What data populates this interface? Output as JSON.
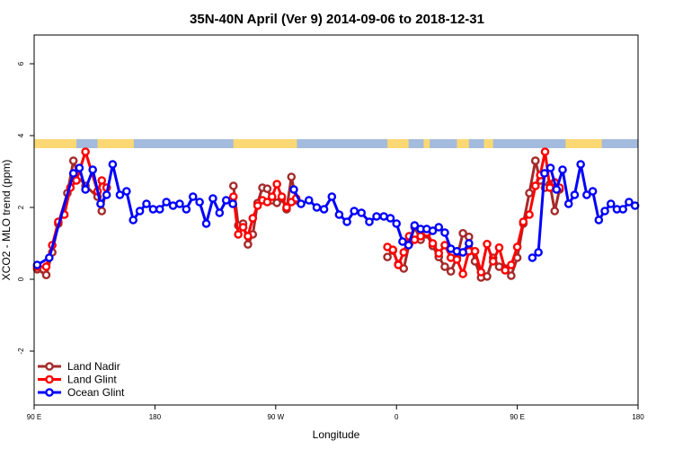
{
  "chart_data": {
    "type": "line",
    "title": "35N-40N April (Ver 9)   2014-09-06 to 2018-12-31",
    "xlabel": "Longitude",
    "ylabel": "XCO2 - MLO trend (ppm)",
    "xlim": [
      0,
      1
    ],
    "ylim": [
      -3.5,
      6.8
    ],
    "xticks": [
      {
        "pos": 0.0,
        "label": "90 E"
      },
      {
        "pos": 0.2,
        "label": "180"
      },
      {
        "pos": 0.4,
        "label": "90 W"
      },
      {
        "pos": 0.6,
        "label": "0"
      },
      {
        "pos": 0.8,
        "label": "90 E"
      },
      {
        "pos": 1.0,
        "label": "180"
      }
    ],
    "yticks": [
      -2,
      0,
      2,
      4,
      6
    ],
    "legend_position": "bottom-left",
    "land_ocean_strip": {
      "y_range": [
        3.65,
        3.9
      ],
      "ocean_color": "#a3bbdc",
      "land_color": "#fcd874",
      "land_segments": [
        [
          0.0,
          0.07
        ],
        [
          0.105,
          0.165
        ],
        [
          0.33,
          0.435
        ],
        [
          0.585,
          0.62
        ],
        [
          0.645,
          0.655
        ],
        [
          0.7,
          0.72
        ],
        [
          0.745,
          0.76
        ],
        [
          0.88,
          0.94
        ]
      ]
    },
    "series": [
      {
        "name": "Land Nadir",
        "color": "#a52a2a",
        "segments": [
          {
            "x": [
              0.005,
              0.02,
              0.03,
              0.04,
              0.055,
              0.065,
              0.074,
              0.085,
              0.105,
              0.112,
              0.12
            ],
            "y": [
              0.28,
              0.12,
              0.75,
              1.55,
              2.4,
              3.3,
              2.85,
              2.6,
              2.3,
              1.9,
              2.55
            ]
          },
          {
            "x": [
              0.33,
              0.338,
              0.346,
              0.354,
              0.362,
              0.37,
              0.378,
              0.386,
              0.394,
              0.402,
              0.41,
              0.418,
              0.426,
              0.434
            ],
            "y": [
              2.6,
              1.5,
              1.55,
              0.97,
              1.25,
              2.12,
              2.55,
              2.52,
              2.2,
              2.13,
              2.25,
              1.95,
              2.85,
              2.2
            ]
          },
          {
            "x": [
              0.585,
              0.594,
              0.603,
              0.612,
              0.621,
              0.63,
              0.64,
              0.65,
              0.66,
              0.67,
              0.68,
              0.69,
              0.7,
              0.71,
              0.72,
              0.73,
              0.74,
              0.75,
              0.76,
              0.77,
              0.78,
              0.79,
              0.8,
              0.81,
              0.82,
              0.83
            ],
            "y": [
              0.62,
              0.8,
              0.42,
              0.3,
              0.98,
              1.45,
              1.1,
              1.25,
              0.93,
              0.62,
              0.35,
              0.22,
              0.6,
              1.28,
              1.18,
              0.5,
              0.05,
              0.08,
              0.6,
              0.35,
              0.3,
              0.1,
              0.6,
              1.55,
              2.4,
              3.3
            ]
          },
          {
            "x": [
              0.83,
              0.838,
              0.846,
              0.854,
              0.862,
              0.87
            ],
            "y": [
              3.3,
              2.75,
              2.55,
              2.65,
              1.9,
              2.5
            ]
          }
        ]
      },
      {
        "name": "Land Glint",
        "color": "#ff0000",
        "segments": [
          {
            "x": [
              0.005,
              0.02,
              0.03,
              0.04,
              0.05,
              0.06,
              0.07,
              0.085,
              0.105,
              0.112,
              0.12
            ],
            "y": [
              0.35,
              0.35,
              0.95,
              1.6,
              1.8,
              2.55,
              2.75,
              3.55,
              2.45,
              2.75,
              2.55
            ]
          },
          {
            "x": [
              0.33,
              0.338,
              0.346,
              0.354,
              0.362,
              0.37,
              0.378,
              0.386,
              0.394,
              0.402,
              0.41,
              0.418,
              0.426,
              0.434
            ],
            "y": [
              2.3,
              1.25,
              1.45,
              1.2,
              1.7,
              2.05,
              2.2,
              2.15,
              2.3,
              2.65,
              2.3,
              2.0,
              2.15,
              2.25
            ]
          },
          {
            "x": [
              0.585,
              0.594,
              0.603,
              0.612,
              0.621,
              0.63,
              0.64,
              0.65,
              0.66,
              0.67,
              0.68,
              0.69,
              0.7,
              0.71,
              0.72,
              0.73,
              0.74,
              0.75,
              0.76,
              0.77,
              0.78,
              0.79,
              0.8,
              0.81,
              0.82,
              0.83
            ],
            "y": [
              0.9,
              0.82,
              0.4,
              0.75,
              1.2,
              1.1,
              1.2,
              1.3,
              1.0,
              0.72,
              0.95,
              0.6,
              0.55,
              0.15,
              0.78,
              0.78,
              0.2,
              0.98,
              0.5,
              0.88,
              0.25,
              0.4,
              0.9,
              1.6,
              1.8,
              2.6
            ]
          },
          {
            "x": [
              0.83,
              0.838,
              0.846,
              0.854,
              0.862,
              0.87
            ],
            "y": [
              2.6,
              2.9,
              3.55,
              2.55,
              2.7,
              2.55
            ]
          }
        ]
      },
      {
        "name": "Ocean Glint",
        "color": "#0000ff",
        "segments": [
          {
            "x": [
              0.005,
              0.025,
              0.065,
              0.075,
              0.085,
              0.097,
              0.11,
              0.12,
              0.13,
              0.142,
              0.153,
              0.164,
              0.175,
              0.186,
              0.197,
              0.208,
              0.219,
              0.23,
              0.241,
              0.252,
              0.263,
              0.274,
              0.285,
              0.296,
              0.307,
              0.318,
              0.329
            ],
            "y": [
              0.4,
              0.6,
              2.95,
              3.1,
              2.5,
              3.05,
              2.1,
              2.35,
              3.2,
              2.35,
              2.45,
              1.65,
              1.9,
              2.1,
              1.95,
              1.95,
              2.15,
              2.05,
              2.1,
              1.95,
              2.3,
              2.15,
              1.55,
              2.25,
              1.85,
              2.2,
              2.1
            ]
          },
          {
            "x": [
              0.43,
              0.442,
              0.455,
              0.468,
              0.48,
              0.493,
              0.505,
              0.518,
              0.53,
              0.542,
              0.555,
              0.567,
              0.579,
              0.59,
              0.6,
              0.61,
              0.62,
              0.63,
              0.64,
              0.65,
              0.66,
              0.67,
              0.68,
              0.69,
              0.7,
              0.71
            ],
            "y": [
              2.5,
              2.1,
              2.2,
              2.0,
              1.95,
              2.3,
              1.8,
              1.6,
              1.9,
              1.85,
              1.6,
              1.75,
              1.75,
              1.7,
              1.55,
              1.05,
              0.95,
              1.5,
              1.4,
              1.4,
              1.35,
              1.45,
              1.3,
              0.85,
              0.78,
              0.75
            ]
          },
          {
            "x": [
              0.71,
              0.72
            ],
            "y": [
              0.75,
              1.0
            ]
          },
          {
            "x": [
              0.825,
              0.835,
              0.845,
              0.855,
              0.865,
              0.875,
              0.885,
              0.895,
              0.905,
              0.915,
              0.925,
              0.935,
              0.945,
              0.955,
              0.965,
              0.975,
              0.985,
              0.995
            ],
            "y": [
              0.6,
              0.75,
              2.95,
              3.1,
              2.5,
              3.05,
              2.1,
              2.35,
              3.2,
              2.35,
              2.45,
              1.65,
              1.9,
              2.1,
              1.95,
              1.95,
              2.15,
              2.05
            ]
          }
        ]
      }
    ]
  }
}
